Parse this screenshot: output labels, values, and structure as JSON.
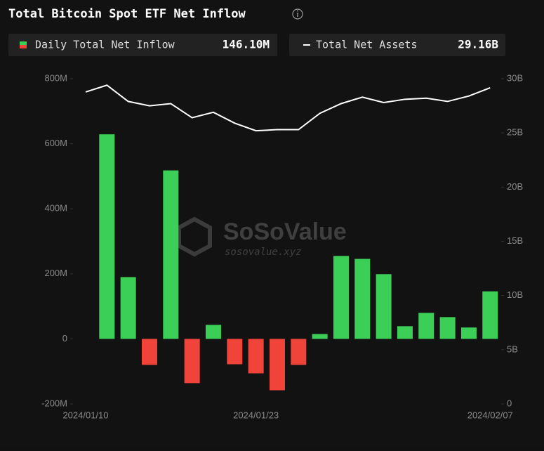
{
  "chart_data": {
    "type": "bar-line",
    "title": "Total Bitcoin Spot ETF Net Inflow",
    "watermark": "SoSoValue",
    "watermark_url": "sosovalue.xyz",
    "categories": [
      "2024/01/10",
      null,
      null,
      null,
      null,
      null,
      null,
      null,
      "2024/01/23",
      null,
      null,
      null,
      null,
      null,
      null,
      null,
      null,
      null,
      null,
      "2024/02/07"
    ],
    "series": [
      {
        "name": "Daily Total Net Inflow",
        "current": "146.10M",
        "color": "#3ccf58",
        "negative_color": "#f0433a",
        "values": [
          0,
          629,
          190,
          -80,
          518,
          -136,
          43,
          -78,
          -106,
          -158,
          -80,
          15,
          255,
          246,
          199,
          39,
          80,
          67,
          35,
          146.1
        ]
      },
      {
        "name": "Total Net Assets",
        "current": "29.16B",
        "color": "#ffffff",
        "axis": "y2",
        "values": [
          28.77,
          29.4,
          27.9,
          27.5,
          27.7,
          26.4,
          26.9,
          25.9,
          25.2,
          25.3,
          25.3,
          26.8,
          27.7,
          28.3,
          27.8,
          28.1,
          28.2,
          27.9,
          28.4,
          29.16
        ]
      }
    ],
    "ylim": [
      -200,
      800
    ],
    "yticks": [
      {
        "value": -200,
        "label": "-200M"
      },
      0,
      {
        "value": 200,
        "label": "200M"
      },
      {
        "value": 400,
        "label": "400M"
      },
      {
        "value": 600,
        "label": "600M"
      },
      {
        "value": 800,
        "label": "800M"
      }
    ],
    "y2lim": [
      0,
      30
    ],
    "y2ticks": [
      0,
      {
        "value": 5,
        "label": "5B"
      },
      {
        "value": 10,
        "label": "10B"
      },
      {
        "value": 15,
        "label": "15B"
      },
      {
        "value": 20,
        "label": "20B"
      },
      {
        "value": 25,
        "label": "25B"
      },
      {
        "value": 30,
        "label": "30B"
      }
    ]
  }
}
